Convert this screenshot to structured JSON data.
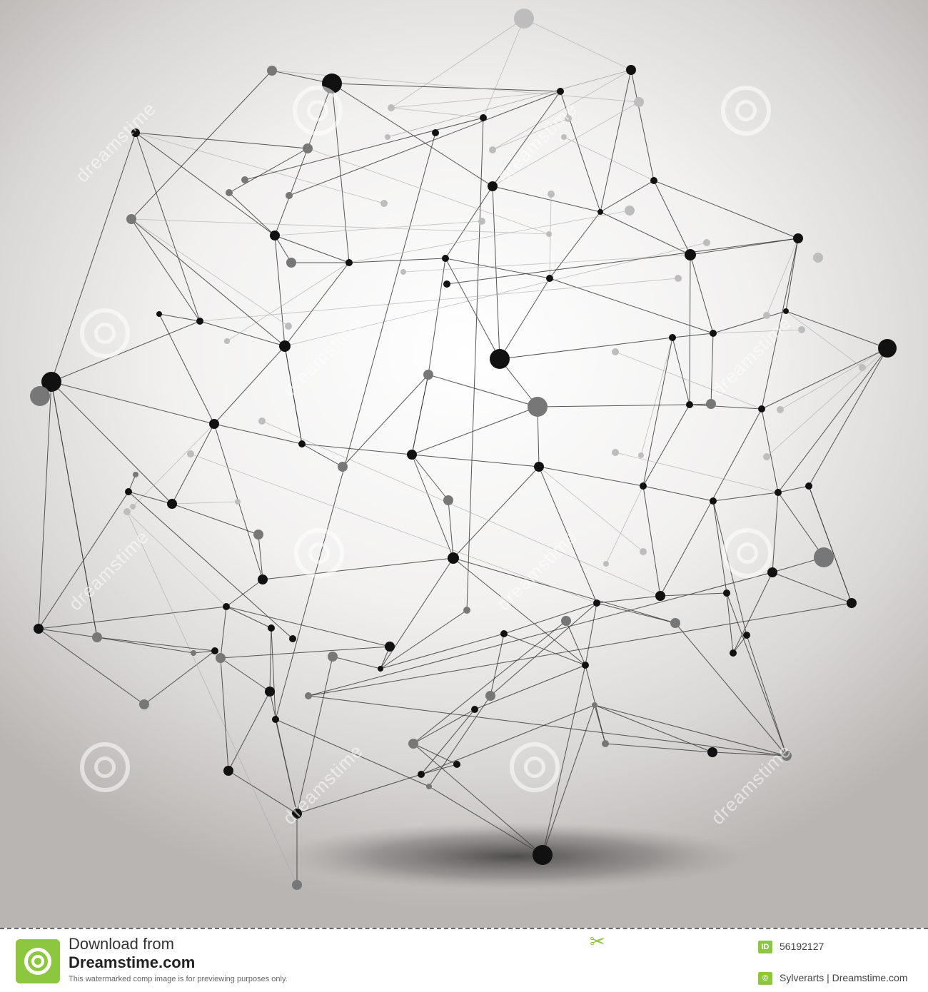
{
  "image": {
    "subject": "wireframe-polyhedron",
    "colors": {
      "line": "#3a3a3a",
      "node_dark": "#111111",
      "node_mid": "#777777",
      "node_light": "#bdbdbd",
      "accent": "#8dc63f"
    }
  },
  "watermark": {
    "text": "dreamstime"
  },
  "footer": {
    "download_label": "Download from",
    "site_name": "Dreamstime.com",
    "notice": "This watermarked comp image is for previewing purposes only.",
    "id_badge": "ID",
    "image_id": "56192127",
    "credit": "Sylverarts | Dreamstime.com",
    "logo_icon": "dreamstime-swirl-icon",
    "scissors_icon": "scissors-icon",
    "copyright_icon": "copyright-icon"
  }
}
